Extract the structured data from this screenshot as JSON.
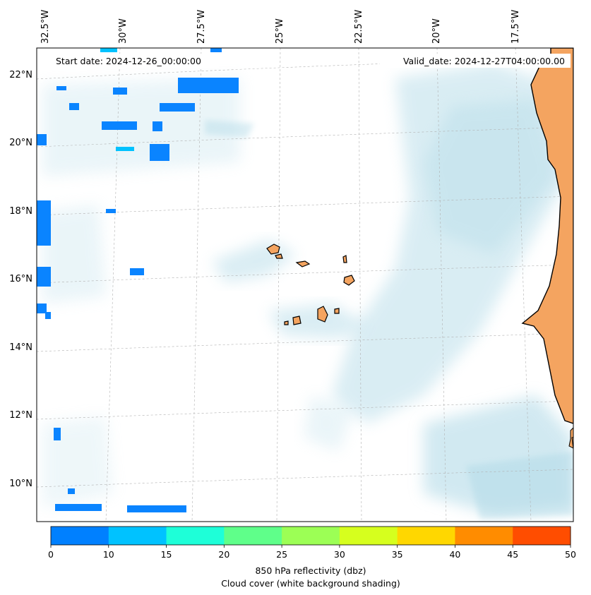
{
  "header": {
    "start_date": "Start date: 2024-12-26_00:00:00",
    "valid_date": "Valid_date: 2024-12-27T04:00:00.00"
  },
  "map": {
    "lon_labels": [
      "32.5°W",
      "30°W",
      "27.5°W",
      "25°W",
      "22.5°W",
      "20°W",
      "17.5°W"
    ],
    "lat_labels": [
      "22°N",
      "20°N",
      "18°N",
      "16°N",
      "14°N",
      "12°N",
      "10°N"
    ],
    "land_color": "#f4a460",
    "reflectivity_color": "#0a84ff",
    "cloud_color": "#add8e6"
  },
  "colorbar": {
    "ticks": [
      "0",
      "10",
      "15",
      "20",
      "25",
      "30",
      "35",
      "40",
      "45",
      "50"
    ],
    "colors": [
      "#0080ff",
      "#00c2ff",
      "#1effd8",
      "#5fff8a",
      "#9cff55",
      "#d6ff1e",
      "#ffd700",
      "#ff8c00",
      "#ff4d00"
    ],
    "label_line1": "850 hPa reflectivity (dbz)",
    "label_line2": "Cloud cover (white background shading)"
  }
}
